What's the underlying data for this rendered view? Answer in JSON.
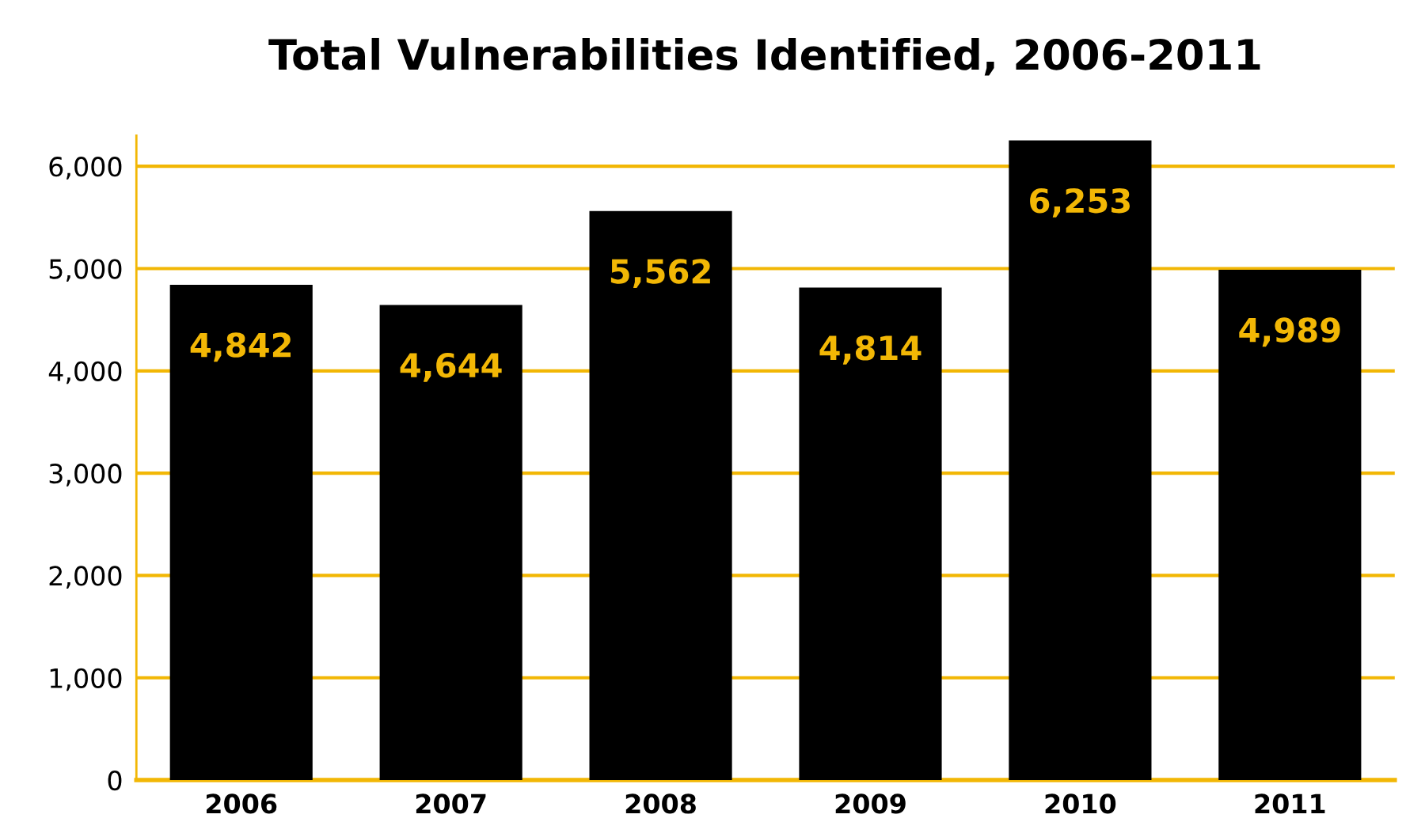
{
  "chart_data": {
    "type": "bar",
    "title": "Total Vulnerabilities Identified, 2006-2011",
    "categories": [
      "2006",
      "2007",
      "2008",
      "2009",
      "2010",
      "2011"
    ],
    "values": [
      4842,
      4644,
      5562,
      4814,
      6253,
      4989
    ],
    "value_labels": [
      "4,842",
      "4,644",
      "5,562",
      "4,814",
      "6,253",
      "4,989"
    ],
    "color": "#000000",
    "ylim": [
      0,
      6300
    ],
    "yticks": [
      0,
      {
        "value": 1000,
        "label": "1,000"
      },
      {
        "value": 2000,
        "label": "2,000"
      },
      {
        "value": 3000,
        "label": "3,000"
      },
      {
        "value": 4000,
        "label": "4,000"
      },
      {
        "value": 5000,
        "label": "5,000"
      },
      {
        "value": 6000,
        "label": "6,000"
      }
    ],
    "grid": "y",
    "legend": false
  }
}
